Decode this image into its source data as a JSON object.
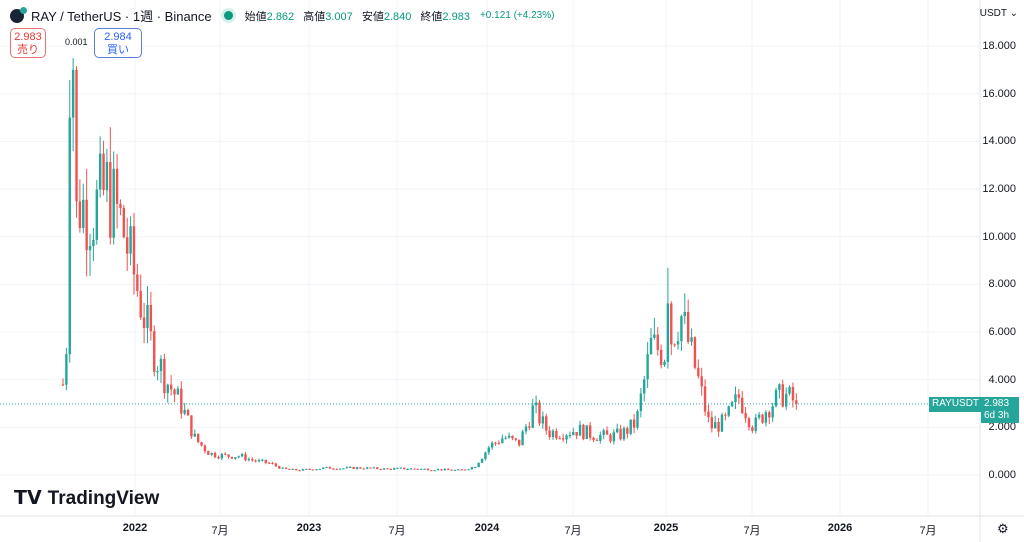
{
  "header": {
    "title": "RAY / TetherUS · 1週 · Binance",
    "open_label": "始値",
    "open": "2.862",
    "high_label": "高値",
    "high": "3.007",
    "low_label": "安値",
    "low": "2.840",
    "close_label": "終値",
    "close": "2.983",
    "change": "+0.121 (+4.23%)"
  },
  "trade": {
    "sell_price": "2.983",
    "sell_label": "売り",
    "spread": "0.001",
    "buy_price": "2.984",
    "buy_label": "買い"
  },
  "currency": "USDT",
  "price_tag": {
    "symbol": "RAYUSDT",
    "price": "2.983",
    "countdown": "6d 3h"
  },
  "brand": "TradingView",
  "colors": {
    "up": "#26a69a",
    "down": "#ef5350"
  },
  "chart_data": {
    "type": "candlestick",
    "title": "RAY / TetherUS 1W Binance",
    "y_ticks": [
      "18.000",
      "16.000",
      "14.000",
      "12.000",
      "10.000",
      "8.000",
      "6.000",
      "4.000",
      "2.000",
      "0.000"
    ],
    "ylim": [
      -1.2,
      19.2
    ],
    "x_ticks": [
      "2022",
      "7月",
      "2023",
      "7月",
      "2024",
      "7月",
      "2025",
      "7月",
      "2026",
      "7月"
    ],
    "start": "2021-08",
    "interval": "monthly closes (approx.)",
    "monthly_close": [
      3.8,
      11.5,
      11,
      12,
      10.5,
      8,
      5.5,
      4,
      3,
      1.5,
      0.9,
      0.8,
      0.8,
      0.6,
      0.5,
      0.25,
      0.2,
      0.25,
      0.3,
      0.28,
      0.3,
      0.28,
      0.25,
      0.27,
      0.26,
      0.24,
      0.22,
      0.2,
      0.35,
      1.2,
      1.6,
      1.3,
      2.8,
      1.8,
      1.8,
      1.9,
      1.7,
      1.6,
      1.7,
      2.2,
      5.4,
      5.2,
      6.8,
      4.5,
      2,
      2.2,
      3.3,
      2.0,
      2.9,
      3.4,
      2.98
    ],
    "peaks": {
      "all_time_high": 17.5,
      "2025_high": 8.7
    },
    "last": 2.983
  }
}
